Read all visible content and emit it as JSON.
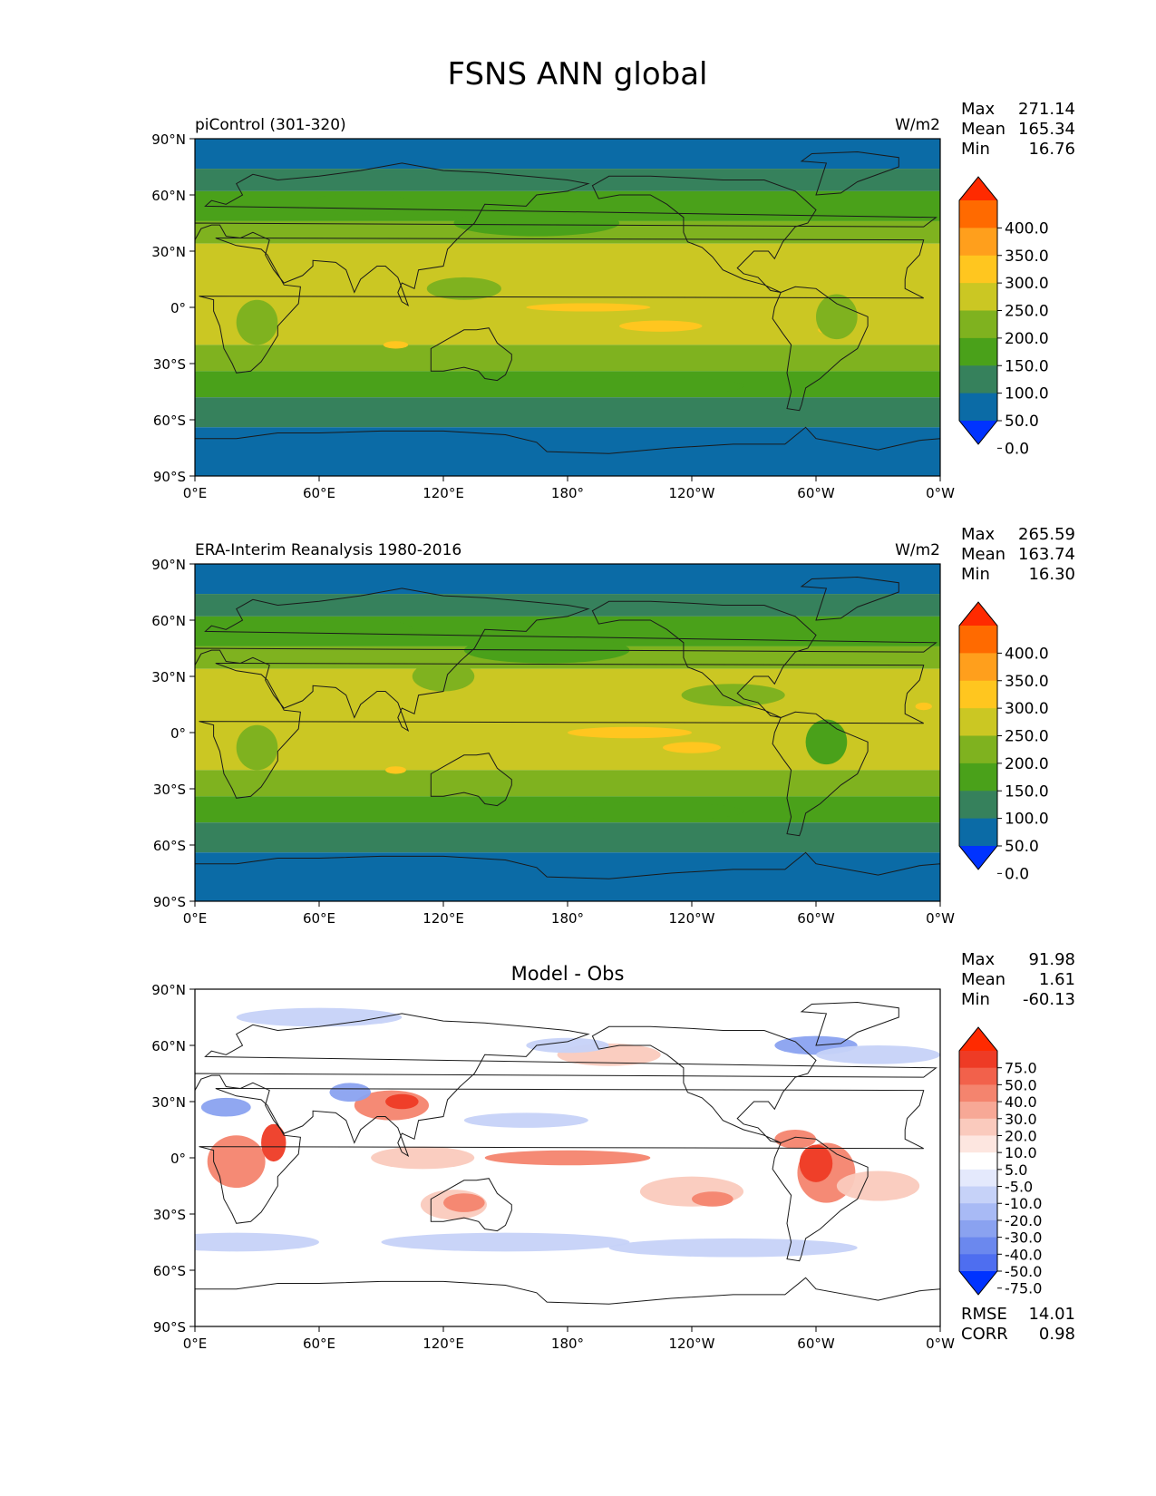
{
  "figure": {
    "title": "FSNS ANN global"
  },
  "axes": {
    "lat_ticks": [
      "90°N",
      "60°N",
      "30°N",
      "0°",
      "30°S",
      "60°S",
      "90°S"
    ],
    "lon_ticks": [
      "0°E",
      "60°E",
      "120°E",
      "180°",
      "120°W",
      "60°W",
      "0°W"
    ]
  },
  "panels": [
    {
      "id": "test",
      "left_title": "piControl (301-320)",
      "center_title": "",
      "right_title": "W/m2",
      "stats": [
        {
          "label": "Max",
          "value": "271.14"
        },
        {
          "label": "Mean",
          "value": "165.34"
        },
        {
          "label": "Min",
          "value": "16.76"
        }
      ],
      "colorbar": {
        "labels": [
          "400.0",
          "350.0",
          "300.0",
          "250.0",
          "200.0",
          "150.0",
          "100.0",
          "50.0",
          "0.0"
        ],
        "colors": [
          "#ff2a00",
          "#ff6a00",
          "#ff9f1c",
          "#ffc61f",
          "#cbc723",
          "#7fb21f",
          "#4aa11a",
          "#36815c",
          "#0b6ba6",
          "#0033ff"
        ]
      },
      "field_colors": {
        "polar": "#0b6ba6",
        "subpolar": "#36815c",
        "midlat": "#4aa11a",
        "subtrop": "#7fb21f",
        "tropics": "#cbc723",
        "high": "#ffc61f"
      },
      "footer": []
    },
    {
      "id": "reference",
      "left_title": "ERA-Interim Reanalysis 1980-2016",
      "center_title": "",
      "right_title": "W/m2",
      "stats": [
        {
          "label": "Max",
          "value": "265.59"
        },
        {
          "label": "Mean",
          "value": "163.74"
        },
        {
          "label": "Min",
          "value": "16.30"
        }
      ],
      "colorbar": {
        "labels": [
          "400.0",
          "350.0",
          "300.0",
          "250.0",
          "200.0",
          "150.0",
          "100.0",
          "50.0",
          "0.0"
        ],
        "colors": [
          "#ff2a00",
          "#ff6a00",
          "#ff9f1c",
          "#ffc61f",
          "#cbc723",
          "#7fb21f",
          "#4aa11a",
          "#36815c",
          "#0b6ba6",
          "#0033ff"
        ]
      },
      "field_colors": {
        "polar": "#0b6ba6",
        "subpolar": "#36815c",
        "midlat": "#4aa11a",
        "subtrop": "#7fb21f",
        "tropics": "#cbc723",
        "high": "#ffc61f"
      },
      "footer": []
    },
    {
      "id": "diff",
      "left_title": "",
      "center_title": "Model - Obs",
      "right_title": "",
      "stats": [
        {
          "label": "Max",
          "value": "91.98"
        },
        {
          "label": "Mean",
          "value": "1.61"
        },
        {
          "label": "Min",
          "value": "-60.13"
        }
      ],
      "colorbar": {
        "labels": [
          "75.0",
          "50.0",
          "40.0",
          "30.0",
          "20.0",
          "10.0",
          "5.0",
          "-5.0",
          "-10.0",
          "-20.0",
          "-30.0",
          "-40.0",
          "-50.0",
          "-75.0"
        ],
        "colors": [
          "#ff2a00",
          "#ee3b25",
          "#f2614b",
          "#f4846e",
          "#f7a896",
          "#facabd",
          "#fde6e0",
          "#ffffff",
          "#e4e9fc",
          "#c6d2f8",
          "#a8baf5",
          "#8aa2f0",
          "#6b88ee",
          "#4e6ef0",
          "#0033ff"
        ]
      },
      "field_colors": {
        "neutral": "#ffffff",
        "warm_light": "#facabd",
        "warm_mid": "#f4846e",
        "warm_strong": "#ee3b25",
        "cool_light": "#c6d2f8",
        "cool_mid": "#8aa2f0"
      },
      "footer": [
        {
          "label": "RMSE",
          "value": "14.01"
        },
        {
          "label": "CORR",
          "value": "0.98"
        }
      ]
    }
  ]
}
